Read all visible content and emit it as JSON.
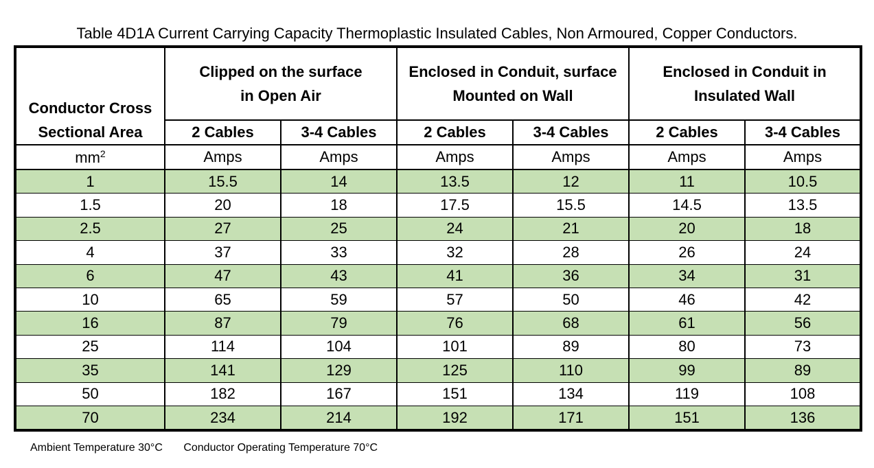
{
  "title": "Table 4D1A Current Carrying Capacity Thermoplastic Insulated Cables, Non Armoured, Copper Conductors.",
  "header": {
    "area_line1": "Conductor Cross",
    "area_line2": "Sectional Area",
    "groups": [
      {
        "line1": "Clipped on the surface",
        "line2": "in Open Air"
      },
      {
        "line1": "Enclosed in Conduit, surface",
        "line2": "Mounted on Wall"
      },
      {
        "line1": "Enclosed in Conduit in",
        "line2": "Insulated Wall"
      }
    ],
    "sub": [
      "2 Cables",
      "3-4 Cables",
      "2 Cables",
      "3-4 Cables",
      "2 Cables",
      "3-4 Cables"
    ],
    "unit_area": "mm",
    "unit_area_sup": "2",
    "units": [
      "Amps",
      "Amps",
      "Amps",
      "Amps",
      "Amps",
      "Amps"
    ]
  },
  "rows": [
    [
      "1",
      "15.5",
      "14",
      "13.5",
      "12",
      "11",
      "10.5"
    ],
    [
      "1.5",
      "20",
      "18",
      "17.5",
      "15.5",
      "14.5",
      "13.5"
    ],
    [
      "2.5",
      "27",
      "25",
      "24",
      "21",
      "20",
      "18"
    ],
    [
      "4",
      "37",
      "33",
      "32",
      "28",
      "26",
      "24"
    ],
    [
      "6",
      "47",
      "43",
      "41",
      "36",
      "34",
      "31"
    ],
    [
      "10",
      "65",
      "59",
      "57",
      "50",
      "46",
      "42"
    ],
    [
      "16",
      "87",
      "79",
      "76",
      "68",
      "61",
      "56"
    ],
    [
      "25",
      "114",
      "104",
      "101",
      "89",
      "80",
      "73"
    ],
    [
      "35",
      "141",
      "129",
      "125",
      "110",
      "99",
      "89"
    ],
    [
      "50",
      "182",
      "167",
      "151",
      "134",
      "119",
      "108"
    ],
    [
      "70",
      "234",
      "214",
      "192",
      "171",
      "151",
      "136"
    ]
  ],
  "footnotes": {
    "ambient": "Ambient Temperature 30°C",
    "operating": "Conductor Operating Temperature 70°C"
  },
  "colors": {
    "row_highlight": "#c6e0b4",
    "border": "#000000"
  }
}
